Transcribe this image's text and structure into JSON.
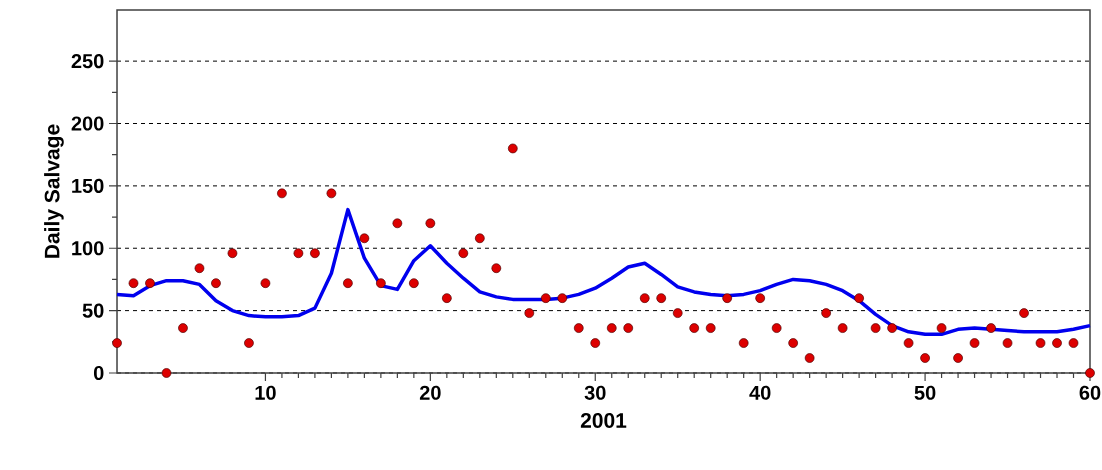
{
  "chart_data": {
    "type": "scatter",
    "xlabel": "2001",
    "ylabel": "Daily Salvage",
    "xlim": [
      1,
      60
    ],
    "ylim": [
      0,
      291
    ],
    "xticks": [
      10,
      20,
      30,
      40,
      50,
      60
    ],
    "yticks": [
      0,
      50,
      100,
      150,
      200,
      250
    ],
    "grid": "y",
    "series": [
      {
        "color": "#dd0000",
        "marker": "circle",
        "x": [
          1,
          2,
          3,
          4,
          5,
          6,
          7,
          8,
          9,
          10,
          11,
          12,
          13,
          14,
          15,
          16,
          17,
          18,
          19,
          20,
          21,
          22,
          23,
          24,
          25,
          26,
          27,
          28,
          29,
          30,
          31,
          32,
          33,
          34,
          35,
          36,
          37,
          38,
          39,
          40,
          41,
          42,
          43,
          44,
          45,
          46,
          47,
          48,
          49,
          50,
          51,
          52,
          53,
          54,
          55,
          56,
          57,
          58,
          59,
          60
        ],
        "values": [
          24,
          72,
          72,
          0,
          36,
          84,
          72,
          96,
          24,
          72,
          144,
          96,
          96,
          144,
          72,
          108,
          72,
          120,
          72,
          120,
          60,
          96,
          108,
          84,
          180,
          48,
          60,
          60,
          36,
          24,
          36,
          36,
          60,
          60,
          48,
          36,
          36,
          60,
          24,
          60,
          36,
          24,
          12,
          48,
          36,
          60,
          36,
          36,
          24,
          12,
          36,
          12,
          24,
          36,
          24,
          48,
          24,
          24,
          24,
          0
        ]
      },
      {
        "type": "line",
        "color": "#0000ee",
        "marker": "none",
        "line_style": "solid",
        "x": [
          1,
          2,
          3,
          4,
          5,
          6,
          7,
          8,
          9,
          10,
          11,
          12,
          13,
          14,
          15,
          16,
          17,
          18,
          19,
          20,
          21,
          22,
          23,
          24,
          25,
          26,
          27,
          28,
          29,
          30,
          31,
          32,
          33,
          34,
          35,
          36,
          37,
          38,
          39,
          40,
          41,
          42,
          43,
          44,
          45,
          46,
          47,
          48,
          49,
          50,
          51,
          52,
          53,
          54,
          55,
          56,
          57,
          58,
          59,
          60
        ],
        "values": [
          63,
          62,
          70,
          74,
          74,
          71,
          58,
          50,
          46,
          45,
          45,
          46,
          52,
          80,
          131,
          92,
          70,
          67,
          90,
          102,
          88,
          76,
          65,
          61,
          59,
          59,
          59,
          60,
          63,
          68,
          76,
          85,
          88,
          79,
          69,
          65,
          63,
          62,
          63,
          66,
          71,
          75,
          74,
          71,
          66,
          58,
          47,
          38,
          33,
          31,
          31,
          35,
          36,
          35,
          34,
          33,
          33,
          33,
          35,
          38
        ]
      }
    ]
  }
}
